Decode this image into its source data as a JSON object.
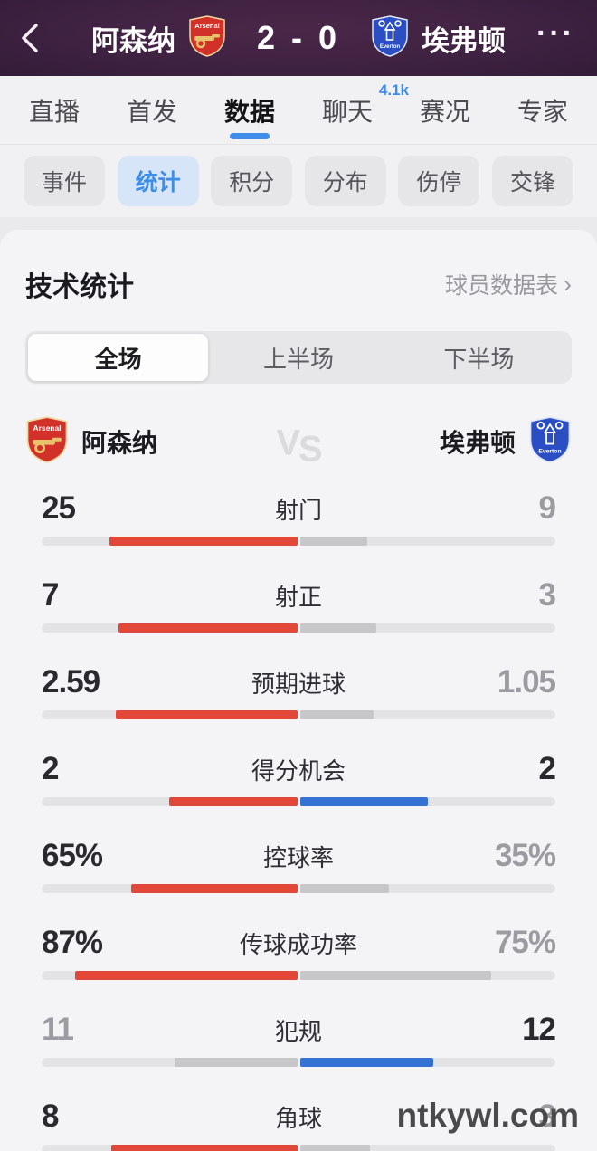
{
  "theme": {
    "red": "#e2483a",
    "blue": "#3572d4",
    "gray": "#c7c7ca",
    "accent_blue": "#3d8de9"
  },
  "header": {
    "home_team": "阿森纳",
    "away_team": "埃弗顿",
    "score": "2 - 0",
    "more_label": "···"
  },
  "tabs": {
    "active_index": 2,
    "items": [
      {
        "label": "直播"
      },
      {
        "label": "首发"
      },
      {
        "label": "数据"
      },
      {
        "label": "聊天",
        "badge": "4.1k"
      },
      {
        "label": "赛况"
      },
      {
        "label": "专家"
      }
    ]
  },
  "subtabs": {
    "active_index": 1,
    "items": [
      "事件",
      "统计",
      "积分",
      "分布",
      "伤停",
      "交锋"
    ]
  },
  "section": {
    "title": "技术统计",
    "link": "球员数据表",
    "chevron": "›"
  },
  "segments": {
    "active_index": 0,
    "items": [
      "全场",
      "上半场",
      "下半场"
    ]
  },
  "teams": {
    "home": "阿森纳",
    "away": "埃弗顿",
    "vs_v": "V",
    "vs_s": "S"
  },
  "stats": {
    "rows": [
      {
        "label": "射门",
        "home": {
          "text": "25",
          "fill": 0.735,
          "color": "red",
          "strong": true
        },
        "away": {
          "text": "9",
          "fill": 0.265,
          "color": "gray",
          "strong": false
        }
      },
      {
        "label": "射正",
        "home": {
          "text": "7",
          "fill": 0.7,
          "color": "red",
          "strong": true
        },
        "away": {
          "text": "3",
          "fill": 0.3,
          "color": "gray",
          "strong": false
        }
      },
      {
        "label": "预期进球",
        "home": {
          "text": "2.59",
          "fill": 0.711,
          "color": "red",
          "strong": true
        },
        "away": {
          "text": "1.05",
          "fill": 0.289,
          "color": "gray",
          "strong": false
        }
      },
      {
        "label": "得分机会",
        "home": {
          "text": "2",
          "fill": 0.5,
          "color": "red",
          "strong": true
        },
        "away": {
          "text": "2",
          "fill": 0.5,
          "color": "blue",
          "strong": true
        }
      },
      {
        "label": "控球率",
        "home": {
          "text": "65%",
          "fill": 0.65,
          "color": "red",
          "strong": true
        },
        "away": {
          "text": "35%",
          "fill": 0.35,
          "color": "gray",
          "strong": false
        }
      },
      {
        "label": "传球成功率",
        "home": {
          "text": "87%",
          "fill": 0.87,
          "color": "red",
          "strong": true
        },
        "away": {
          "text": "75%",
          "fill": 0.75,
          "color": "gray",
          "strong": false
        }
      },
      {
        "label": "犯规",
        "home": {
          "text": "11",
          "fill": 0.478,
          "color": "gray",
          "strong": false
        },
        "away": {
          "text": "12",
          "fill": 0.522,
          "color": "blue",
          "strong": true
        }
      },
      {
        "label": "角球",
        "home": {
          "text": "8",
          "fill": 0.727,
          "color": "red",
          "strong": true
        },
        "away": {
          "text": "3",
          "fill": 0.273,
          "color": "gray",
          "strong": false
        }
      }
    ]
  },
  "watermark": "ntkywl.com"
}
